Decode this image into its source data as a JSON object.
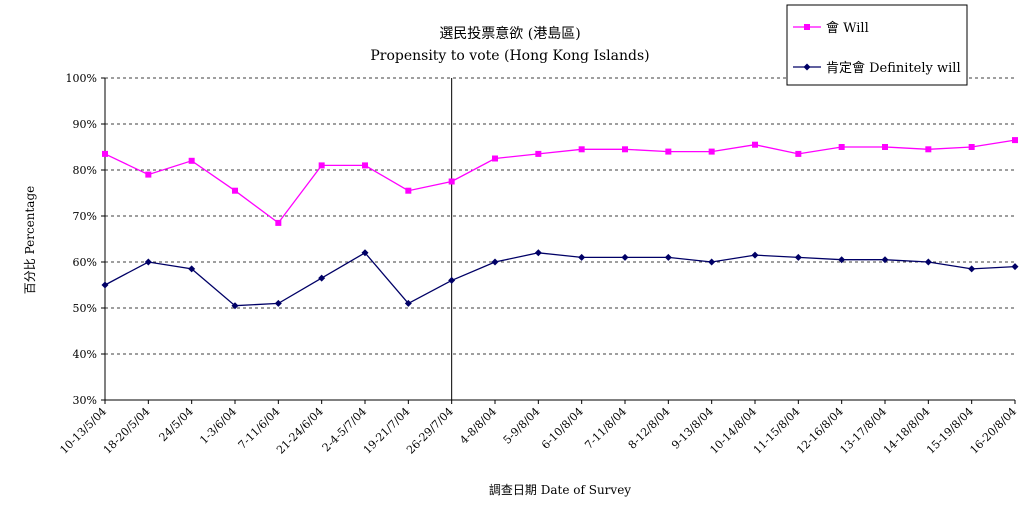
{
  "chart_data": {
    "type": "line",
    "title": "選民投票意欲 (港島區)",
    "subtitle": "Propensity to vote (Hong Kong Islands)",
    "xlabel": "調查日期 Date of Survey",
    "ylabel": "百分比 Percentage",
    "ylim": [
      30,
      100
    ],
    "yticks": [
      "30%",
      "40%",
      "50%",
      "60%",
      "70%",
      "80%",
      "90%",
      "100%"
    ],
    "grid": "horizontal-dashed",
    "legend_position": "top-right",
    "divider_after_category": "26-29/7/04",
    "categories": [
      "10-13/5/04",
      "18-20/5/04",
      "24/5/04",
      "1-3/6/04",
      "7-11/6/04",
      "21-24/6/04",
      "2-4-5/7/04",
      "19-21/7/04",
      "26-29/7/04",
      "4-8/8/04",
      "5-9/8/04",
      "6-10/8/04",
      "7-11/8/04",
      "8-12/8/04",
      "9-13/8/04",
      "10-14/8/04",
      "11-15/8/04",
      "12-16/8/04",
      "13-17/8/04",
      "14-18/8/04",
      "15-19/8/04",
      "16-20/8/04"
    ],
    "series": [
      {
        "name": "會 Will",
        "color": "#FF00FF",
        "marker": "square",
        "values": [
          83.5,
          79.0,
          82.0,
          75.5,
          68.5,
          81.0,
          81.0,
          75.5,
          77.5,
          82.5,
          83.5,
          84.5,
          84.5,
          84.0,
          84.0,
          85.5,
          83.5,
          85.0,
          85.0,
          84.5,
          85.0,
          86.5
        ]
      },
      {
        "name": "肯定會 Definitely will",
        "color": "#000066",
        "marker": "diamond",
        "values": [
          55.0,
          60.0,
          58.5,
          50.5,
          51.0,
          56.5,
          62.0,
          51.0,
          56.0,
          60.0,
          62.0,
          61.0,
          61.0,
          61.0,
          60.0,
          61.5,
          61.0,
          60.5,
          60.5,
          60.0,
          58.5,
          59.0
        ]
      }
    ]
  }
}
